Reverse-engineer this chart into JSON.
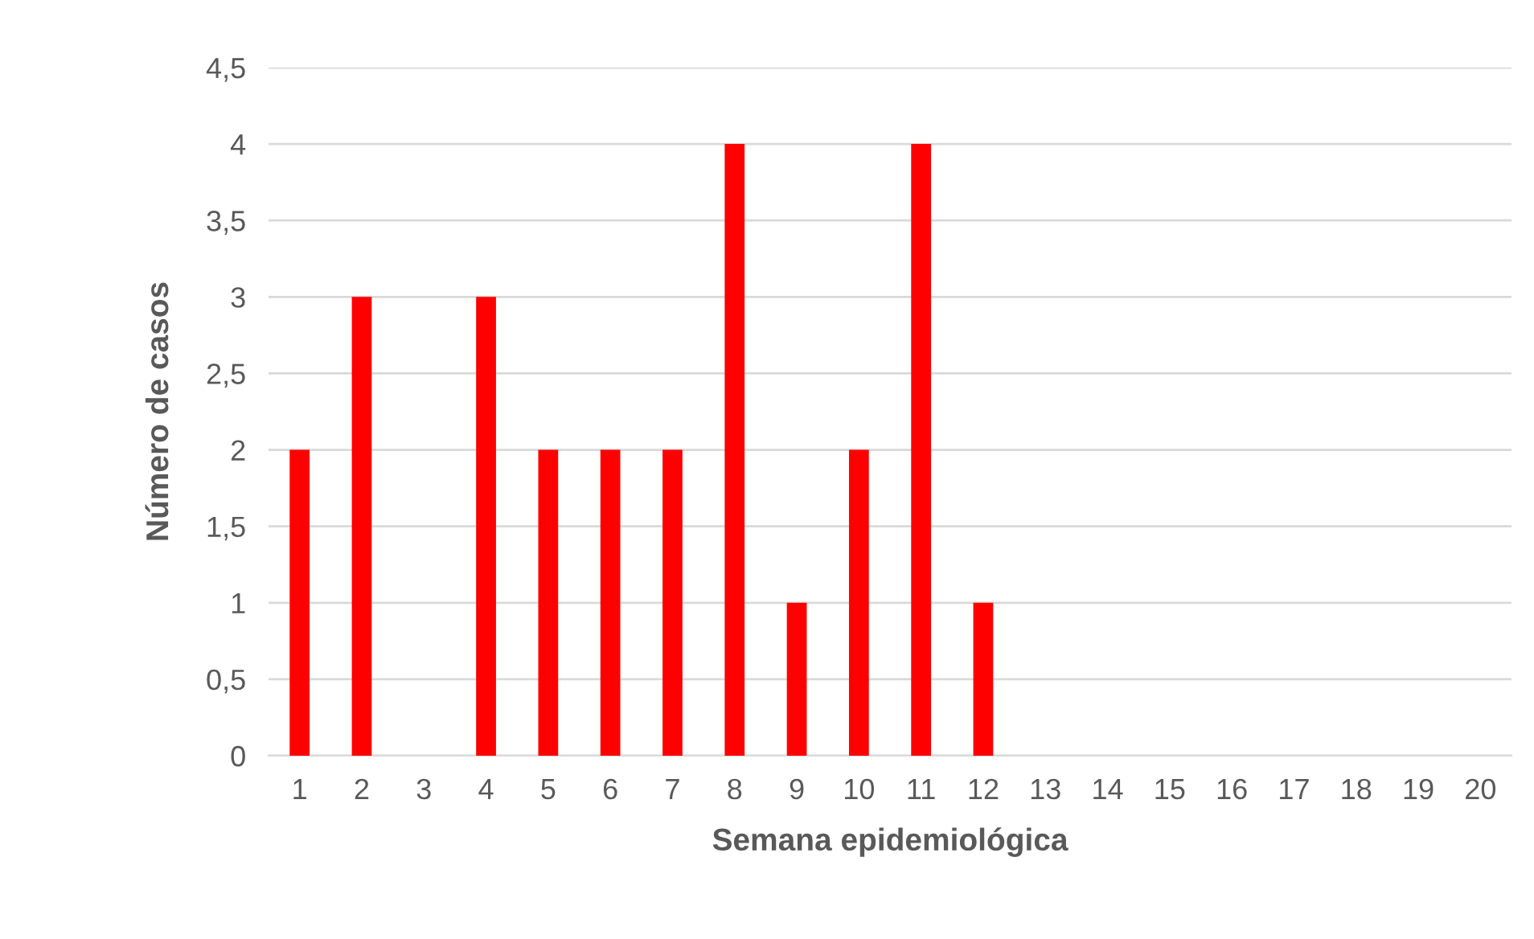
{
  "chart_data": {
    "type": "bar",
    "xlabel": "Semana epidemiológica",
    "ylabel": "Número de casos",
    "categories": [
      "1",
      "2",
      "3",
      "4",
      "5",
      "6",
      "7",
      "8",
      "9",
      "10",
      "11",
      "12",
      "13",
      "14",
      "15",
      "16",
      "17",
      "18",
      "19",
      "20"
    ],
    "values": [
      2,
      3,
      0,
      3,
      2,
      2,
      2,
      4,
      1,
      2,
      4,
      1,
      0,
      0,
      0,
      0,
      0,
      0,
      0,
      0
    ],
    "color": "#ff0000",
    "ylim": [
      0,
      4.5
    ],
    "yticks": [
      0,
      {
        "value": 0.5,
        "label": "0,5"
      },
      1,
      {
        "value": 1.5,
        "label": "1,5"
      },
      2,
      {
        "value": 2.5,
        "label": "2,5"
      },
      3,
      {
        "value": 3.5,
        "label": "3,5"
      },
      4,
      {
        "value": 4.5,
        "label": "4,5"
      }
    ],
    "grid": "y",
    "legend": false
  }
}
